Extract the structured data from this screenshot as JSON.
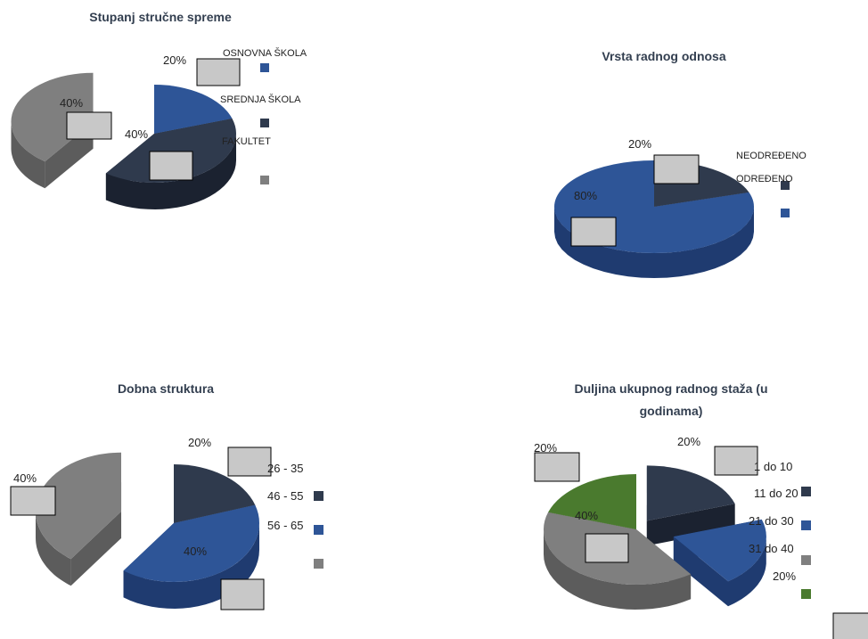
{
  "colors": {
    "blue": "#2e5597",
    "blue_dark": "#1f3b70",
    "navy": "#2f3a4d",
    "navy_dark": "#1b2230",
    "gray": "#7f7f7f",
    "gray_dark": "#5c5c5c",
    "green": "#4a7a2e",
    "green_dark": "#345a1f",
    "callout_fill": "#c8c8c8",
    "title": "#333f50"
  },
  "chart_data": [
    {
      "type": "pie",
      "title": "Stupanj stručne spreme",
      "slices": [
        {
          "name": "OSNOVNA ŠKOLA",
          "value": 20,
          "label": "20%",
          "color": "blue"
        },
        {
          "name": "SREDNJA ŠKOLA",
          "value": 40,
          "label": "40%",
          "color": "navy"
        },
        {
          "name": "FAKULTET",
          "value": 40,
          "label": "40%",
          "color": "gray"
        }
      ]
    },
    {
      "type": "pie",
      "title": "Vrsta radnog odnosa",
      "slices": [
        {
          "name": "NEODREĐENO",
          "value": 20,
          "label": "20%",
          "color": "navy"
        },
        {
          "name": "ODREĐENO",
          "value": 80,
          "label": "80%",
          "color": "blue"
        }
      ]
    },
    {
      "type": "pie",
      "title": "Dobna struktura",
      "slices": [
        {
          "name": "26 - 35",
          "value": 20,
          "label": "20%",
          "color": "navy"
        },
        {
          "name": "46 - 55",
          "value": 40,
          "label": "40%",
          "color": "blue"
        },
        {
          "name": "56 - 65",
          "value": 40,
          "label": "40%",
          "color": "gray"
        }
      ]
    },
    {
      "type": "pie",
      "title": "Duljina ukupnog radnog staža (u godinama)",
      "title_lines": [
        "Duljina ukupnog radnog staža (u",
        "godinama)"
      ],
      "slices": [
        {
          "name": "1 do 10",
          "value": 20,
          "label": "20%",
          "color": "navy"
        },
        {
          "name": "11 do 20",
          "value": 20,
          "label": "20%",
          "color": "blue"
        },
        {
          "name": "21 do 30",
          "value": 40,
          "label": "40%",
          "color": "gray"
        },
        {
          "name": "31 do 40",
          "value": 20,
          "label": "20%",
          "color": "green"
        }
      ]
    }
  ]
}
